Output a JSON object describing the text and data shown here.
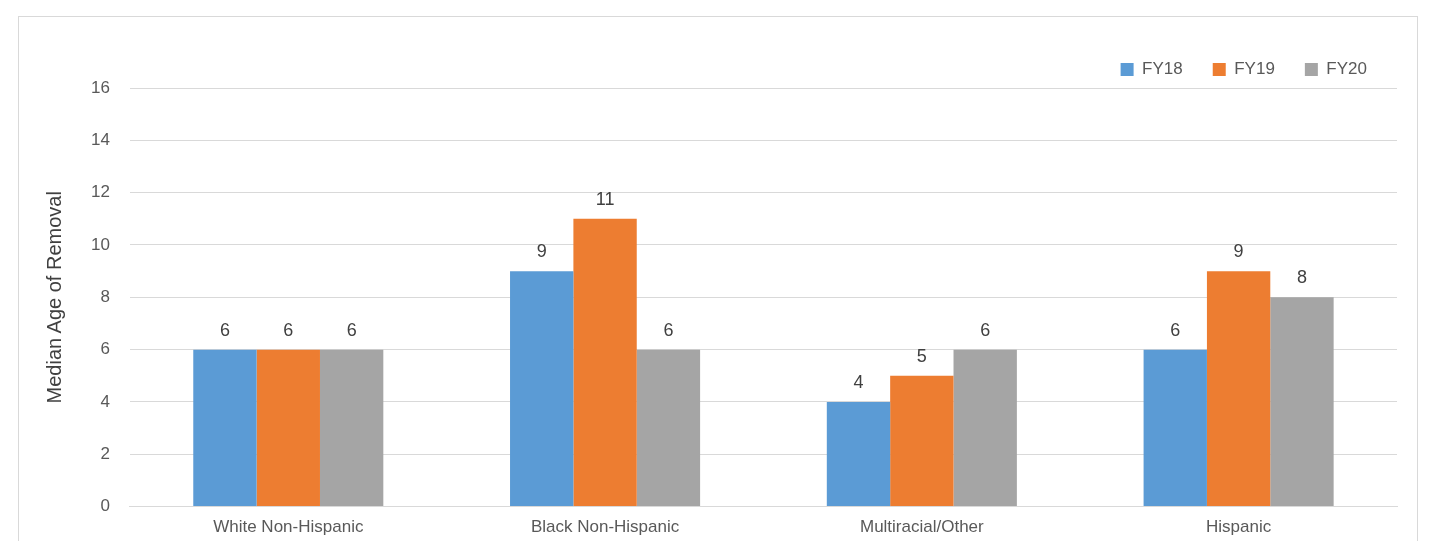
{
  "chart_data": {
    "type": "bar",
    "ylabel": "Median Age of Removal",
    "categories": [
      "White Non-Hispanic",
      "Black Non-Hispanic",
      "Multiracial/Other",
      "Hispanic"
    ],
    "series": [
      {
        "name": "FY18",
        "color": "#5b9bd5",
        "values": [
          6,
          9,
          4,
          6
        ]
      },
      {
        "name": "FY19",
        "color": "#ed7d31",
        "values": [
          6,
          11,
          5,
          9
        ]
      },
      {
        "name": "FY20",
        "color": "#a5a5a5",
        "values": [
          6,
          6,
          6,
          8
        ]
      }
    ],
    "ylim": [
      0,
      16
    ],
    "yticks": [
      0,
      2,
      4,
      6,
      8,
      10,
      12,
      14,
      16
    ],
    "grid": "y",
    "legend": "top right",
    "data_labels": true
  }
}
